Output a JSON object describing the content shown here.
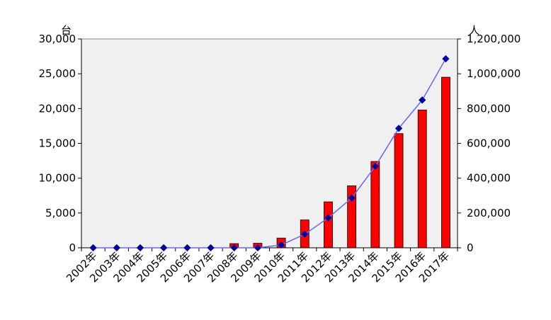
{
  "chart_data": {
    "type": "bar",
    "categories": [
      "2002年",
      "2003年",
      "2004年",
      "2005年",
      "2006年",
      "2007年",
      "2008年",
      "2009年",
      "2010年",
      "2011年",
      "2012年",
      "2013年",
      "2014年",
      "2015年",
      "2016年",
      "2017年"
    ],
    "series": [
      {
        "type": "bar",
        "axis": "left",
        "color": "#ff0000",
        "values": [
          0,
          0,
          0,
          0,
          0,
          0,
          600,
          650,
          1400,
          4000,
          6600,
          8900,
          12400,
          16400,
          19800,
          24500
        ]
      },
      {
        "type": "line",
        "axis": "right",
        "color": "#6666ff",
        "marker_color": "#000099",
        "values": [
          0,
          0,
          0,
          0,
          0,
          0,
          0,
          0,
          16000,
          78000,
          172000,
          286000,
          468000,
          686000,
          849000,
          1086000
        ]
      }
    ],
    "y_left": {
      "unit": "台",
      "ylim": [
        0,
        30000
      ],
      "ticks": [
        "0",
        "5,000",
        "10,000",
        "15,000",
        "20,000",
        "25,000",
        "30,000"
      ]
    },
    "y_right": {
      "unit": "人",
      "ylim": [
        0,
        1200000
      ],
      "ticks": [
        "0",
        "200,000",
        "400,000",
        "600,000",
        "800,000",
        "1,000,000",
        "1,200,000"
      ]
    },
    "plot_background": "#f0f0f0",
    "grid": false,
    "legend": "none"
  }
}
